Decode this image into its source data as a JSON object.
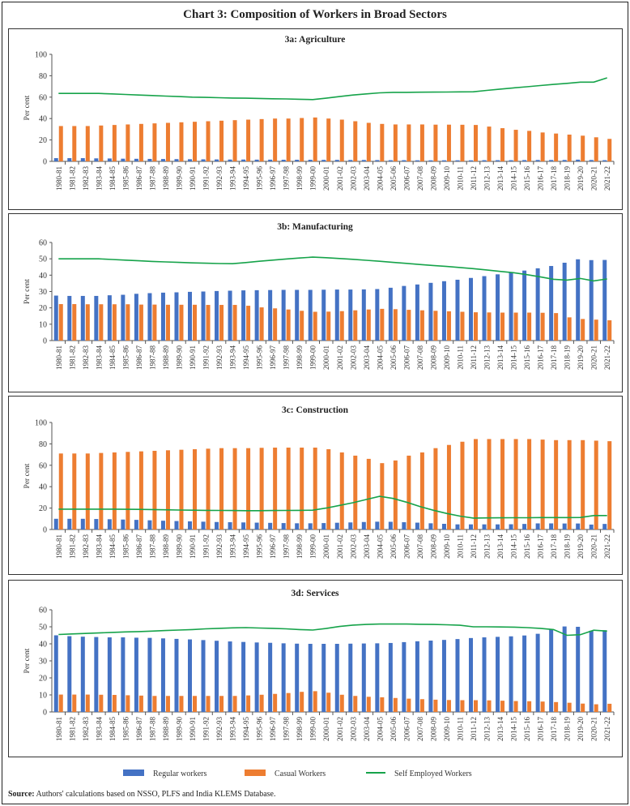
{
  "title": "Chart 3: Composition of Workers in Broad Sectors",
  "source_label": "Source:",
  "source_text": " Authors' calculations based on NSSO, PLFS and India KLEMS Database.",
  "legend": [
    {
      "name": "Regular workers",
      "color": "#4472C4",
      "kind": "bar"
    },
    {
      "name": "Casual Workers",
      "color": "#ED7D31",
      "kind": "bar"
    },
    {
      "name": "Self Employed Workers",
      "color": "#16A34A",
      "kind": "line"
    }
  ],
  "chart_data": [
    {
      "type": "bar+line",
      "title": "3a: Agriculture",
      "ylabel": "Per cent",
      "ylim": [
        0,
        100
      ],
      "yticks": [
        0,
        20,
        40,
        60,
        80,
        100
      ],
      "grid": false,
      "categories": [
        "1980-81",
        "1981-82",
        "1982-83",
        "1983-84",
        "1984-85",
        "1985-86",
        "1986-87",
        "1987-88",
        "1988-89",
        "1989-90",
        "1990-91",
        "1991-92",
        "1992-93",
        "1993-94",
        "1994-95",
        "1995-96",
        "1996-97",
        "1997-98",
        "1998-99",
        "1999-00",
        "2000-01",
        "2001-02",
        "2002-03",
        "2003-04",
        "2004-05",
        "2005-06",
        "2006-07",
        "2007-08",
        "2008-09",
        "2009-10",
        "2010-11",
        "2011-12",
        "2012-13",
        "2013-14",
        "2014-15",
        "2015-16",
        "2016-17",
        "2017-18",
        "2018-19",
        "2019-20",
        "2020-21",
        "2021-22"
      ],
      "series": [
        {
          "name": "Regular workers",
          "type": "bar",
          "values": [
            3,
            3,
            3,
            2.8,
            2.7,
            2.5,
            2.4,
            2.3,
            2.2,
            2.1,
            2,
            1.9,
            1.8,
            1.7,
            1.7,
            1.6,
            1.6,
            1.5,
            1.5,
            1.5,
            1.4,
            1.4,
            1.3,
            1.3,
            1.2,
            1.1,
            1.1,
            1,
            1,
            1,
            1,
            1,
            1.1,
            1.1,
            1.1,
            1.2,
            1.3,
            1.3,
            1.3,
            1.6,
            1.3,
            1.1
          ]
        },
        {
          "name": "Casual Workers",
          "type": "bar",
          "values": [
            33,
            33,
            33,
            33.5,
            34,
            34.5,
            35,
            35.5,
            36,
            36.5,
            37,
            37.5,
            38,
            38.5,
            39,
            39.5,
            40,
            40,
            40.5,
            41,
            40,
            39,
            37.5,
            36,
            35,
            34.5,
            34.5,
            34.5,
            34.3,
            34.3,
            34.2,
            34,
            32.5,
            31,
            29.5,
            28.5,
            27,
            26,
            25,
            24,
            22.5,
            21
          ]
        },
        {
          "name": "Self Employed Workers",
          "type": "line",
          "values": [
            63.5,
            63.5,
            63.5,
            63.5,
            63,
            62.5,
            62,
            61.5,
            61,
            60.5,
            60,
            59.8,
            59.5,
            59.2,
            59,
            58.8,
            58.5,
            58.3,
            58,
            57.7,
            59,
            60.5,
            62,
            63,
            64,
            64.5,
            64.5,
            64.6,
            64.7,
            64.8,
            64.9,
            65,
            66.3,
            67.5,
            68.6,
            69.7,
            70.8,
            71.9,
            72.9,
            74,
            74,
            78
          ]
        }
      ]
    },
    {
      "type": "bar+line",
      "title": "3b: Manufacturing",
      "ylabel": "Per cent",
      "ylim": [
        0,
        60
      ],
      "yticks": [
        0,
        10,
        20,
        30,
        40,
        50,
        60
      ],
      "grid": false,
      "categories": [
        "1980-81",
        "1981-82",
        "1982-83",
        "1983-84",
        "1984-85",
        "1985-86",
        "1986-87",
        "1987-88",
        "1988-89",
        "1989-90",
        "1990-91",
        "1991-92",
        "1992-93",
        "1993-94",
        "1994-95",
        "1995-96",
        "1996-97",
        "1997-98",
        "1998-99",
        "1999-00",
        "2000-01",
        "2001-02",
        "2002-03",
        "2003-04",
        "2004-05",
        "2005-06",
        "2006-07",
        "2007-08",
        "2008-09",
        "2009-10",
        "2010-11",
        "2011-12",
        "2012-13",
        "2013-14",
        "2014-15",
        "2015-16",
        "2016-17",
        "2017-18",
        "2018-19",
        "2019-20",
        "2020-21",
        "2021-22"
      ],
      "series": [
        {
          "name": "Regular workers",
          "type": "bar",
          "values": [
            27.5,
            27.3,
            27.3,
            27.3,
            27.7,
            28,
            28.6,
            29,
            29.3,
            29.5,
            29.8,
            30,
            30.3,
            30.5,
            30.7,
            30.8,
            30.9,
            31,
            31,
            31,
            31.1,
            31.2,
            31.2,
            31.3,
            31.5,
            32.3,
            33.4,
            34.3,
            35.3,
            36.3,
            37.2,
            38.3,
            39.4,
            40.5,
            41.7,
            42.8,
            44.2,
            45.6,
            47.6,
            49.7,
            49.2,
            49.3
          ]
        },
        {
          "name": "Casual Workers",
          "type": "bar",
          "values": [
            22.3,
            22.3,
            22.2,
            22.2,
            22.2,
            22.2,
            22,
            22,
            21.9,
            21.9,
            21.9,
            21.8,
            21.8,
            21.8,
            21.3,
            20.3,
            19.7,
            19,
            18.2,
            17.6,
            17.7,
            18,
            18.5,
            19,
            19.4,
            19.2,
            18.8,
            18.5,
            18.2,
            17.9,
            17.6,
            17.3,
            17.2,
            17.1,
            17.1,
            17.1,
            17,
            16.8,
            14.2,
            13.2,
            12.8,
            12.4
          ]
        },
        {
          "name": "Self Employed Workers",
          "type": "line",
          "values": [
            50,
            50,
            50,
            50,
            49.6,
            49.2,
            48.8,
            48.4,
            48.1,
            47.8,
            47.5,
            47.3,
            47.1,
            47,
            47.7,
            48.5,
            49.2,
            49.9,
            50.5,
            51,
            50.7,
            50.2,
            49.7,
            49.1,
            48.5,
            47.8,
            47.2,
            46.5,
            45.9,
            45.3,
            44.7,
            44,
            43.2,
            42.3,
            41.5,
            40.3,
            39,
            37.5,
            37,
            38,
            36.5,
            37.7
          ]
        }
      ]
    },
    {
      "type": "bar+line",
      "title": "3c: Construction",
      "ylabel": "Per cent",
      "ylim": [
        0,
        100
      ],
      "yticks": [
        0,
        20,
        40,
        60,
        80,
        100
      ],
      "grid": false,
      "categories": [
        "1980-81",
        "1981-82",
        "1982-83",
        "1983-84",
        "1984-85",
        "1985-86",
        "1986-87",
        "1987-88",
        "1988-89",
        "1989-90",
        "1990-91",
        "1991-92",
        "1992-93",
        "1993-94",
        "1994-95",
        "1995-96",
        "1996-97",
        "1997-98",
        "1998-99",
        "1999-00",
        "2000-01",
        "2001-02",
        "2002-03",
        "2003-04",
        "2004-05",
        "2005-06",
        "2006-07",
        "2007-08",
        "2008-09",
        "2009-10",
        "2010-11",
        "2011-12",
        "2012-13",
        "2013-14",
        "2014-15",
        "2015-16",
        "2016-17",
        "2017-18",
        "2018-19",
        "2019-20",
        "2020-21",
        "2021-22"
      ],
      "series": [
        {
          "name": "Regular workers",
          "type": "bar",
          "values": [
            10,
            10,
            10,
            9.8,
            9.6,
            9.3,
            9,
            8.6,
            8.2,
            7.9,
            7.6,
            7.3,
            7,
            6.8,
            6.6,
            6.4,
            6.2,
            6,
            5.8,
            5.8,
            6,
            6.3,
            6.6,
            7,
            7.3,
            7.2,
            6.8,
            6.4,
            5.8,
            5.3,
            4.8,
            4.8,
            4.8,
            4.8,
            4.9,
            5.2,
            5.7,
            5.7,
            5.6,
            5.6,
            4.6,
            5.2
          ]
        },
        {
          "name": "Casual Workers",
          "type": "bar",
          "values": [
            71,
            71,
            71,
            71.5,
            72,
            72.5,
            73,
            73.5,
            74,
            74.5,
            75,
            75.5,
            76,
            76,
            76,
            76.3,
            76.5,
            76.5,
            76.5,
            76.5,
            75,
            72,
            69,
            66,
            62,
            64.5,
            69,
            72,
            76,
            79,
            82,
            84.5,
            84.5,
            84.5,
            84.5,
            84.5,
            84,
            83.5,
            83.5,
            83.5,
            83,
            82.5
          ]
        },
        {
          "name": "Self Employed Workers",
          "type": "line",
          "values": [
            19,
            19,
            19,
            19,
            19,
            18.9,
            18.8,
            18.6,
            18.4,
            18.2,
            18,
            17.9,
            17.8,
            17.7,
            17.6,
            17.6,
            17.7,
            17.8,
            17.9,
            18,
            20,
            22.5,
            25,
            28,
            31,
            29,
            25.5,
            21.5,
            18,
            15,
            12.5,
            10.7,
            10.8,
            10.9,
            11,
            11,
            11.1,
            11.1,
            11.1,
            11.2,
            13,
            13
          ]
        }
      ]
    },
    {
      "type": "bar+line",
      "title": "3d: Services",
      "ylabel": "Per cent",
      "ylim": [
        0,
        60
      ],
      "yticks": [
        0,
        10,
        20,
        30,
        40,
        50,
        60
      ],
      "grid": false,
      "categories": [
        "1980-81",
        "1981-82",
        "1982-83",
        "1983-84",
        "1984-85",
        "1985-86",
        "1986-87",
        "1987-88",
        "1988-89",
        "1989-90",
        "1990-91",
        "1991-92",
        "1992-93",
        "1993-94",
        "1994-95",
        "1995-96",
        "1996-97",
        "1997-98",
        "1998-99",
        "1999-00",
        "2000-01",
        "2001-02",
        "2002-03",
        "2003-04",
        "2004-05",
        "2005-06",
        "2006-07",
        "2007-08",
        "2008-09",
        "2009-10",
        "2010-11",
        "2011-12",
        "2012-13",
        "2013-14",
        "2014-15",
        "2015-16",
        "2016-17",
        "2017-18",
        "2018-19",
        "2019-20",
        "2020-21",
        "2021-22"
      ],
      "series": [
        {
          "name": "Regular workers",
          "type": "bar",
          "values": [
            45,
            44.5,
            44.2,
            44,
            43.8,
            43.8,
            43.6,
            43.5,
            43.2,
            42.9,
            42.6,
            42.2,
            41.8,
            41.4,
            41.1,
            40.8,
            40.6,
            40.3,
            40.1,
            40,
            40,
            40,
            40.1,
            40.2,
            40.3,
            40.5,
            41,
            41.5,
            41.9,
            42.3,
            42.8,
            43.4,
            43.8,
            44.1,
            44.4,
            44.9,
            45.9,
            48.4,
            50.2,
            50,
            47.7,
            48
          ]
        },
        {
          "name": "Casual Workers",
          "type": "bar",
          "values": [
            10.2,
            10.2,
            10.2,
            10.1,
            10,
            9.8,
            9.6,
            9.4,
            9.4,
            9.4,
            9.4,
            9.4,
            9.4,
            9.4,
            9.7,
            10.1,
            10.6,
            11.1,
            11.8,
            12.2,
            11.3,
            10.1,
            9.4,
            8.9,
            8.6,
            8.2,
            7.8,
            7.5,
            7.2,
            7,
            6.9,
            6.9,
            6.8,
            6.6,
            6.4,
            6.3,
            6.1,
            5.8,
            5.4,
            4.9,
            4.5,
            4.8
          ]
        },
        {
          "name": "Self Employed Workers",
          "type": "line",
          "values": [
            45.5,
            45.8,
            46.1,
            46.4,
            46.7,
            47,
            47.2,
            47.5,
            47.8,
            48.1,
            48.4,
            48.8,
            49.1,
            49.4,
            49.5,
            49.3,
            49.1,
            48.8,
            48.4,
            48.1,
            49,
            50.2,
            51,
            51.4,
            51.6,
            51.6,
            51.6,
            51.5,
            51.4,
            51.2,
            50.9,
            50,
            50,
            49.9,
            49.8,
            49.5,
            49.1,
            48.4,
            45,
            45.4,
            48,
            47.5
          ]
        }
      ]
    }
  ]
}
